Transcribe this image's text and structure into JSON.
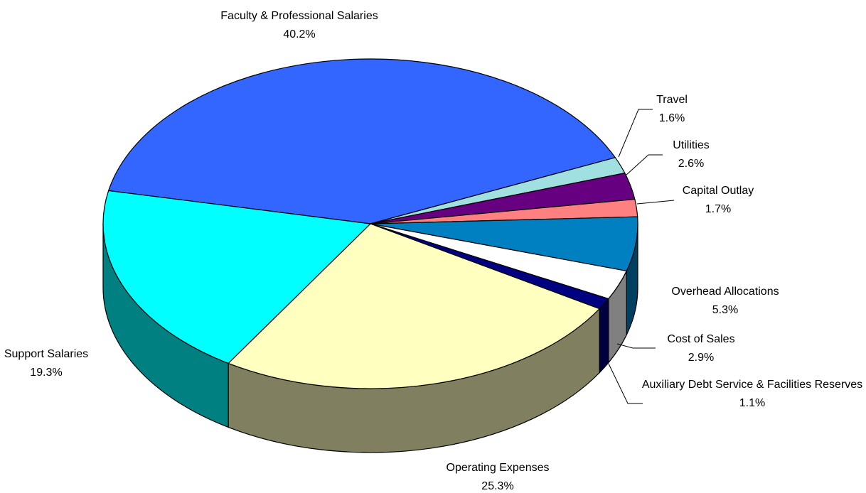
{
  "chart_data": {
    "type": "pie3d",
    "categories": [
      "Faculty & Professional Salaries",
      "Travel",
      "Utilities",
      "Capital Outlay",
      "Overhead Allocations",
      "Cost of Sales",
      "Auxiliary Debt Service & Facilities Reserves",
      "Operating Expenses",
      "Support Salaries"
    ],
    "values": [
      40.2,
      1.6,
      2.6,
      1.7,
      5.3,
      2.9,
      1.1,
      25.3,
      19.3
    ],
    "value_labels": [
      "40.2%",
      "1.6%",
      "2.6%",
      "1.7%",
      "5.3%",
      "2.9%",
      "1.1%",
      "25.3%",
      "19.3%"
    ],
    "colors": [
      "#3366ff",
      "#a0e0e0",
      "#660080",
      "#ff8080",
      "#0080c0",
      "#ffffff",
      "#000080",
      "#ffffc0",
      "#00ffff"
    ]
  }
}
